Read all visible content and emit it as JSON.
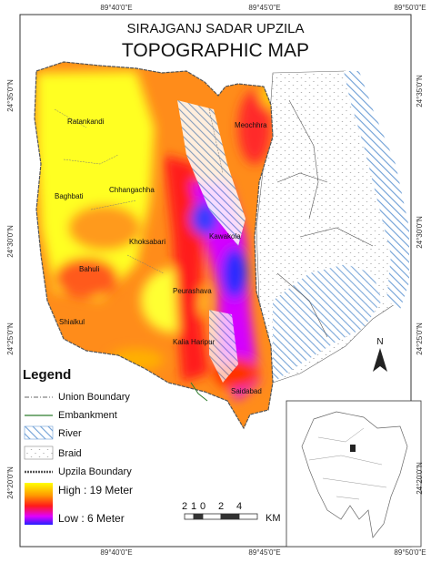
{
  "header": {
    "subtitle": "SIRAJGANJ SADAR UPZILA",
    "title": "TOPOGRAPHIC MAP"
  },
  "grid_labels": {
    "top": [
      "89°40'0\"E",
      "89°45'0\"E",
      "89°50'0\"E"
    ],
    "bottom": [
      "89°40'0\"E",
      "89°45'0\"E",
      "89°50'0\"E"
    ],
    "left": [
      "24°35'0\"N",
      "24°30'0\"N",
      "24°25'0\"N",
      "24°20'0\"N"
    ],
    "right": [
      "24°35'0\"N",
      "24°30'0\"N",
      "24°25'0\"N",
      "24°20'0\"N"
    ]
  },
  "places": [
    "Ratankandi",
    "Baghbati",
    "Chhangachha",
    "Khoksabari",
    "Bahuli",
    "Shialkul",
    "Peurashava",
    "Kalia Haripur",
    "Saidabad",
    "Meochhra",
    "Kawakola"
  ],
  "legend": {
    "title": "Legend",
    "items": [
      "Union Boundary",
      "Embankment",
      "River",
      "Braid",
      "Upzila Boundary"
    ],
    "high": "High : 19 Meter",
    "low": "Low : 6 Meter"
  },
  "scale": {
    "labels": [
      "2",
      "1",
      "0",
      "2",
      "4"
    ],
    "unit": "KM"
  },
  "north": "N"
}
